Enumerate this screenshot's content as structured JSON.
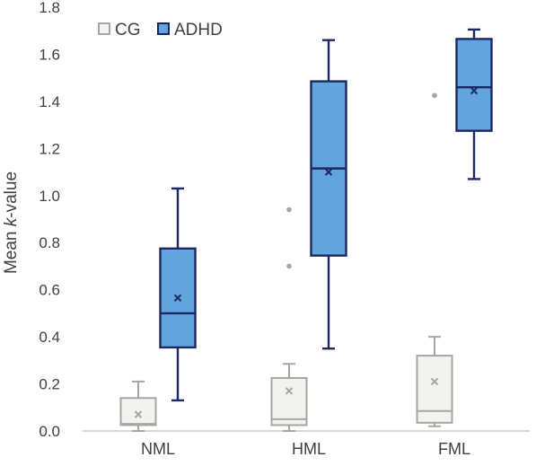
{
  "chart_data": {
    "type": "box",
    "title": "",
    "xlabel": "",
    "ylabel": "Mean k-value",
    "ylabel_parts": {
      "before": "Mean ",
      "italic": "k",
      "after": "-value"
    },
    "ylim": [
      0,
      1.8
    ],
    "yticks": [
      "0.0",
      "0.2",
      "0.4",
      "0.6",
      "0.8",
      "1.0",
      "1.2",
      "1.4",
      "1.6",
      "1.8"
    ],
    "grid": false,
    "legend_position": "top-left",
    "categories": [
      "NML",
      "HML",
      "FML"
    ],
    "series": [
      {
        "name": "CG",
        "fill": "#f2f2ef",
        "stroke": "#a6a6a6",
        "boxes": [
          {
            "category": "NML",
            "whisker_low": 0.0,
            "q1": 0.025,
            "median": 0.03,
            "q3": 0.14,
            "whisker_high": 0.21,
            "mean": 0.07,
            "outliers": []
          },
          {
            "category": "HML",
            "whisker_low": 0.0,
            "q1": 0.025,
            "median": 0.05,
            "q3": 0.225,
            "whisker_high": 0.285,
            "mean": 0.17,
            "outliers": [
              0.7,
              0.94
            ]
          },
          {
            "category": "FML",
            "whisker_low": 0.02,
            "q1": 0.035,
            "median": 0.085,
            "q3": 0.32,
            "whisker_high": 0.4,
            "mean": 0.21,
            "outliers": [
              1.425
            ]
          }
        ]
      },
      {
        "name": "ADHD",
        "fill": "#63a3de",
        "stroke": "#1c2861",
        "boxes": [
          {
            "category": "NML",
            "whisker_low": 0.13,
            "q1": 0.355,
            "median": 0.5,
            "q3": 0.775,
            "whisker_high": 1.03,
            "mean": 0.565,
            "outliers": []
          },
          {
            "category": "HML",
            "whisker_low": 0.35,
            "q1": 0.745,
            "median": 1.115,
            "q3": 1.485,
            "whisker_high": 1.66,
            "mean": 1.1,
            "outliers": []
          },
          {
            "category": "FML",
            "whisker_low": 1.07,
            "q1": 1.275,
            "median": 1.46,
            "q3": 1.665,
            "whisker_high": 1.705,
            "mean": 1.445,
            "outliers": []
          }
        ]
      }
    ]
  }
}
